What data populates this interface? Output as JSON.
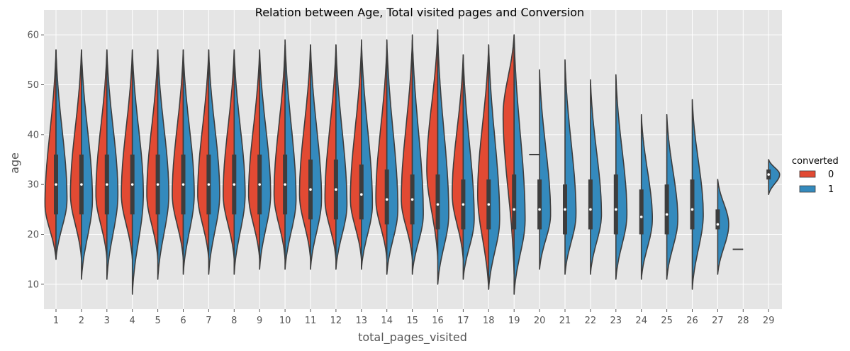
{
  "chart_data": {
    "type": "violin",
    "split": true,
    "title": "Relation between Age, Total visited pages and Conversion",
    "xlabel": "total_pages_visited",
    "ylabel": "age",
    "categories": [
      "1",
      "2",
      "3",
      "4",
      "5",
      "6",
      "7",
      "8",
      "9",
      "10",
      "11",
      "12",
      "13",
      "14",
      "15",
      "16",
      "17",
      "18",
      "19",
      "20",
      "21",
      "22",
      "23",
      "24",
      "25",
      "26",
      "27",
      "28",
      "29"
    ],
    "ylim": [
      5,
      65
    ],
    "yticks": [
      10,
      20,
      30,
      40,
      50,
      60
    ],
    "grid": true,
    "legend": {
      "title": "converted",
      "position": "right",
      "entries": [
        {
          "label": "0",
          "color": "#E24A33"
        },
        {
          "label": "1",
          "color": "#348ABD"
        }
      ]
    },
    "colors": {
      "converted_0": "#E24A33",
      "converted_1": "#348ABD",
      "background": "#E5E5E5",
      "grid": "#ffffff",
      "edge": "#3d3d3d"
    },
    "series": [
      {
        "name": "0",
        "violins": [
          {
            "x": "1",
            "min": 15,
            "max": 57,
            "mode": 26
          },
          {
            "x": "2",
            "min": 15,
            "max": 57,
            "mode": 28
          },
          {
            "x": "3",
            "min": 15,
            "max": 57,
            "mode": 28
          },
          {
            "x": "4",
            "min": 15,
            "max": 57,
            "mode": 28
          },
          {
            "x": "5",
            "min": 15,
            "max": 57,
            "mode": 28
          },
          {
            "x": "6",
            "min": 15,
            "max": 57,
            "mode": 28
          },
          {
            "x": "7",
            "min": 15,
            "max": 57,
            "mode": 28
          },
          {
            "x": "8",
            "min": 15,
            "max": 57,
            "mode": 28
          },
          {
            "x": "9",
            "min": 15,
            "max": 57,
            "mode": 28
          },
          {
            "x": "10",
            "min": 15,
            "max": 58,
            "mode": 28
          },
          {
            "x": "11",
            "min": 15,
            "max": 58,
            "mode": 28
          },
          {
            "x": "12",
            "min": 15,
            "max": 58,
            "mode": 27
          },
          {
            "x": "13",
            "min": 15,
            "max": 58,
            "mode": 27
          },
          {
            "x": "14",
            "min": 15,
            "max": 58,
            "mode": 27
          },
          {
            "x": "15",
            "min": 15,
            "max": 59,
            "mode": 27
          },
          {
            "x": "16",
            "min": 15,
            "max": 61,
            "mode": 33
          },
          {
            "x": "17",
            "min": 15,
            "max": 56,
            "mode": 28
          },
          {
            "x": "18",
            "min": 9,
            "max": 58,
            "mode": 28
          },
          {
            "x": "19",
            "min": 12,
            "max": 60,
            "mode": 44
          },
          {
            "x": "20",
            "min": 36,
            "max": 36,
            "mode": 36
          },
          {
            "x": "28",
            "min": 17,
            "max": 17,
            "mode": 17
          }
        ]
      },
      {
        "name": "1",
        "violins": [
          {
            "x": "1",
            "min": 15,
            "max": 57,
            "mode": 27
          },
          {
            "x": "2",
            "min": 11,
            "max": 57,
            "mode": 27
          },
          {
            "x": "3",
            "min": 11,
            "max": 57,
            "mode": 28
          },
          {
            "x": "4",
            "min": 8,
            "max": 57,
            "mode": 28
          },
          {
            "x": "5",
            "min": 11,
            "max": 57,
            "mode": 28
          },
          {
            "x": "6",
            "min": 12,
            "max": 57,
            "mode": 28
          },
          {
            "x": "7",
            "min": 12,
            "max": 57,
            "mode": 28
          },
          {
            "x": "8",
            "min": 12,
            "max": 57,
            "mode": 28
          },
          {
            "x": "9",
            "min": 13,
            "max": 57,
            "mode": 28
          },
          {
            "x": "10",
            "min": 13,
            "max": 59,
            "mode": 27
          },
          {
            "x": "11",
            "min": 13,
            "max": 58,
            "mode": 27
          },
          {
            "x": "12",
            "min": 13,
            "max": 58,
            "mode": 26
          },
          {
            "x": "13",
            "min": 13,
            "max": 59,
            "mode": 26
          },
          {
            "x": "14",
            "min": 12,
            "max": 59,
            "mode": 25
          },
          {
            "x": "15",
            "min": 12,
            "max": 60,
            "mode": 24
          },
          {
            "x": "16",
            "min": 10,
            "max": 60,
            "mode": 24
          },
          {
            "x": "17",
            "min": 11,
            "max": 56,
            "mode": 23
          },
          {
            "x": "18",
            "min": 9,
            "max": 58,
            "mode": 23
          },
          {
            "x": "19",
            "min": 8,
            "max": 60,
            "mode": 23
          },
          {
            "x": "20",
            "min": 13,
            "max": 53,
            "mode": 24
          },
          {
            "x": "21",
            "min": 12,
            "max": 55,
            "mode": 24
          },
          {
            "x": "22",
            "min": 12,
            "max": 51,
            "mode": 24
          },
          {
            "x": "23",
            "min": 11,
            "max": 52,
            "mode": 24
          },
          {
            "x": "24",
            "min": 11,
            "max": 44,
            "mode": 23
          },
          {
            "x": "25",
            "min": 11,
            "max": 44,
            "mode": 23
          },
          {
            "x": "26",
            "min": 9,
            "max": 47,
            "mode": 24
          },
          {
            "x": "27",
            "min": 12,
            "max": 31,
            "mode": 22
          },
          {
            "x": "29",
            "min": 28,
            "max": 35,
            "mode": 32
          }
        ]
      }
    ],
    "quartiles": [
      {
        "x": "1",
        "q1": 24,
        "median": 30,
        "q3": 36
      },
      {
        "x": "2",
        "q1": 24,
        "median": 30,
        "q3": 36
      },
      {
        "x": "3",
        "q1": 24,
        "median": 30,
        "q3": 36
      },
      {
        "x": "4",
        "q1": 24,
        "median": 30,
        "q3": 36
      },
      {
        "x": "5",
        "q1": 24,
        "median": 30,
        "q3": 36
      },
      {
        "x": "6",
        "q1": 24,
        "median": 30,
        "q3": 36
      },
      {
        "x": "7",
        "q1": 24,
        "median": 30,
        "q3": 36
      },
      {
        "x": "8",
        "q1": 24,
        "median": 30,
        "q3": 36
      },
      {
        "x": "9",
        "q1": 24,
        "median": 30,
        "q3": 36
      },
      {
        "x": "10",
        "q1": 24,
        "median": 30,
        "q3": 36
      },
      {
        "x": "11",
        "q1": 23,
        "median": 29,
        "q3": 35
      },
      {
        "x": "12",
        "q1": 23,
        "median": 29,
        "q3": 35
      },
      {
        "x": "13",
        "q1": 23,
        "median": 28,
        "q3": 34
      },
      {
        "x": "14",
        "q1": 22,
        "median": 27,
        "q3": 33
      },
      {
        "x": "15",
        "q1": 22,
        "median": 27,
        "q3": 32
      },
      {
        "x": "16",
        "q1": 21,
        "median": 26,
        "q3": 32
      },
      {
        "x": "17",
        "q1": 21,
        "median": 26,
        "q3": 31
      },
      {
        "x": "18",
        "q1": 21,
        "median": 26,
        "q3": 31
      },
      {
        "x": "19",
        "q1": 21,
        "median": 25,
        "q3": 32
      },
      {
        "x": "20",
        "q1": 21,
        "median": 25,
        "q3": 31
      },
      {
        "x": "21",
        "q1": 20,
        "median": 25,
        "q3": 30
      },
      {
        "x": "22",
        "q1": 21,
        "median": 25,
        "q3": 31
      },
      {
        "x": "23",
        "q1": 20,
        "median": 25,
        "q3": 32
      },
      {
        "x": "24",
        "q1": 20,
        "median": 23.5,
        "q3": 29
      },
      {
        "x": "25",
        "q1": 20,
        "median": 24,
        "q3": 30
      },
      {
        "x": "26",
        "q1": 21,
        "median": 25,
        "q3": 31
      },
      {
        "x": "27",
        "q1": 21,
        "median": 22,
        "q3": 25
      },
      {
        "x": "29",
        "q1": 31,
        "median": 32,
        "q3": 33
      }
    ]
  }
}
